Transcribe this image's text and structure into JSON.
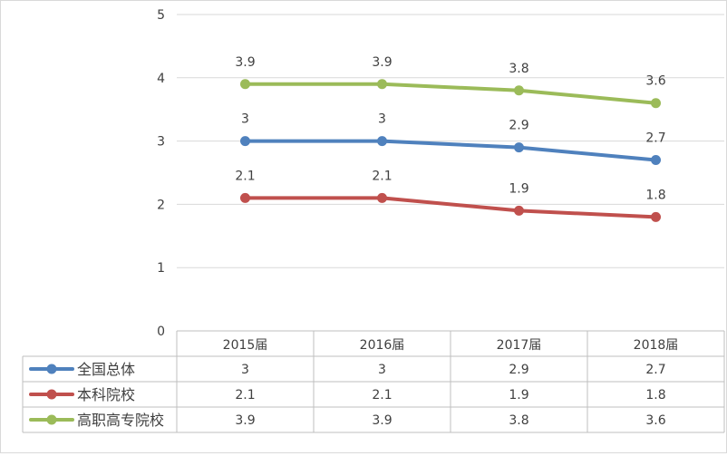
{
  "chart_data": {
    "type": "line",
    "title": "",
    "xlabel": "",
    "ylabel": "",
    "categories": [
      "2015届",
      "2016届",
      "2017届",
      "2018届"
    ],
    "ylim": [
      0,
      5
    ],
    "yticks": [
      "0",
      "1",
      "2",
      "3",
      "4",
      "5"
    ],
    "grid": true,
    "legend": "data-table-left",
    "series": [
      {
        "name": "全国总体",
        "values": [
          3,
          3,
          2.9,
          2.7
        ],
        "labels": [
          "3",
          "3",
          "2.9",
          "2.7"
        ],
        "color": "#4f81bd"
      },
      {
        "name": "本科院校",
        "values": [
          2.1,
          2.1,
          1.9,
          1.8
        ],
        "labels": [
          "2.1",
          "2.1",
          "1.9",
          "1.8"
        ],
        "color": "#c0504d"
      },
      {
        "name": "高职高专院校",
        "values": [
          3.9,
          3.9,
          3.8,
          3.6
        ],
        "labels": [
          "3.9",
          "3.9",
          "3.8",
          "3.6"
        ],
        "color": "#9bbb59"
      }
    ]
  }
}
